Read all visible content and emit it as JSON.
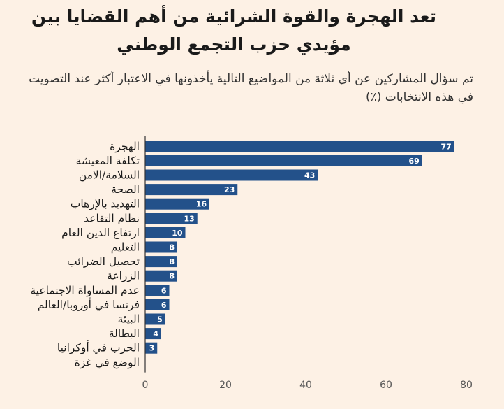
{
  "header": {
    "title": "تعد الهجرة والقوة الشرائية من أهم القضايا بين مؤيدي حزب التجمع الوطني",
    "subtitle": "تم سؤال المشاركين عن أي ثلاثة من المواضيع التالية يأخذونها في الاعتبار أكثر عند التصويت في هذه الانتخابات (٪)"
  },
  "colors": {
    "bar": "#23518a",
    "background": "#fdf1e5",
    "axis": "#333333",
    "grid": "#d8cfc4"
  },
  "chart_data": {
    "type": "bar",
    "orientation": "horizontal",
    "title": "تعد الهجرة والقوة الشرائية من أهم القضايا بين مؤيدي حزب التجمع الوطني",
    "subtitle": "تم سؤال المشاركين عن أي ثلاثة من المواضيع التالية يأخذونها في الاعتبار أكثر عند التصويت في هذه الانتخابات (٪)",
    "categories": [
      "الهجرة",
      "تكلفة المعيشة",
      "السلامة/الامن",
      "الصحة",
      "التهديد بالإرهاب",
      "نظام التقاعد",
      "ارتفاع الدين العام",
      "التعليم",
      "تحصيل الضرائب",
      "الزراعة",
      "عدم المساواة الاجتماعية",
      "فرنسا في أوروبا/العالم",
      "البيئة",
      "البطالة",
      "الحرب في أوكرانيا",
      "الوضع في غزة"
    ],
    "values": [
      77,
      69,
      43,
      23,
      16,
      13,
      10,
      8,
      8,
      8,
      6,
      6,
      5,
      4,
      3,
      null
    ],
    "value_labels": [
      "77",
      "69",
      "43",
      "23",
      "16",
      "13",
      "10",
      "8",
      "8",
      "8",
      "6",
      "6",
      "5",
      "4",
      "3",
      ""
    ],
    "xlim": [
      0,
      80
    ],
    "xticks": [
      0,
      20,
      40,
      60,
      80
    ],
    "xtick_labels": [
      "0",
      "20",
      "40",
      "60",
      "80"
    ],
    "xlabel": "",
    "ylabel": "",
    "grid": false,
    "legend": "none"
  }
}
